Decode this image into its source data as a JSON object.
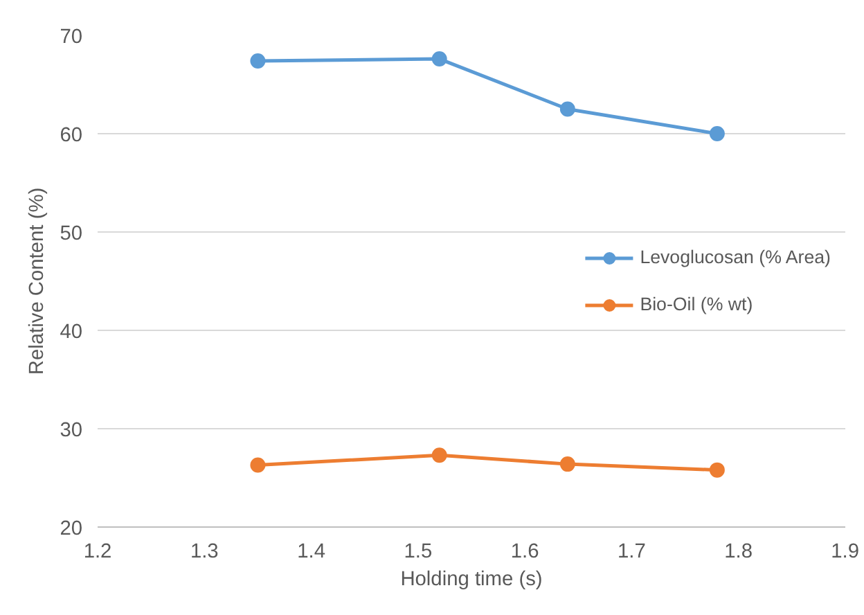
{
  "chart_data": {
    "type": "line",
    "xlabel": "Holding time (s)",
    "ylabel": "Relative Content (%)",
    "x": [
      1.35,
      1.52,
      1.64,
      1.78
    ],
    "series": [
      {
        "name": "Levoglucosan (% Area)",
        "color": "#5b9bd5",
        "values": [
          67.4,
          67.6,
          62.5,
          60.0
        ]
      },
      {
        "name": "Bio-Oil (% wt)",
        "color": "#ed7d31",
        "values": [
          26.3,
          27.3,
          26.4,
          25.8
        ]
      }
    ],
    "xlim": [
      1.2,
      1.9
    ],
    "xticks": [
      1.2,
      1.3,
      1.4,
      1.5,
      1.6,
      1.7,
      1.8,
      1.9
    ],
    "ylim": [
      20,
      70
    ],
    "yticks": [
      20,
      30,
      40,
      50,
      60,
      70
    ],
    "grid": "y",
    "legend": "right",
    "marker": "circle",
    "line_style": "solid"
  }
}
